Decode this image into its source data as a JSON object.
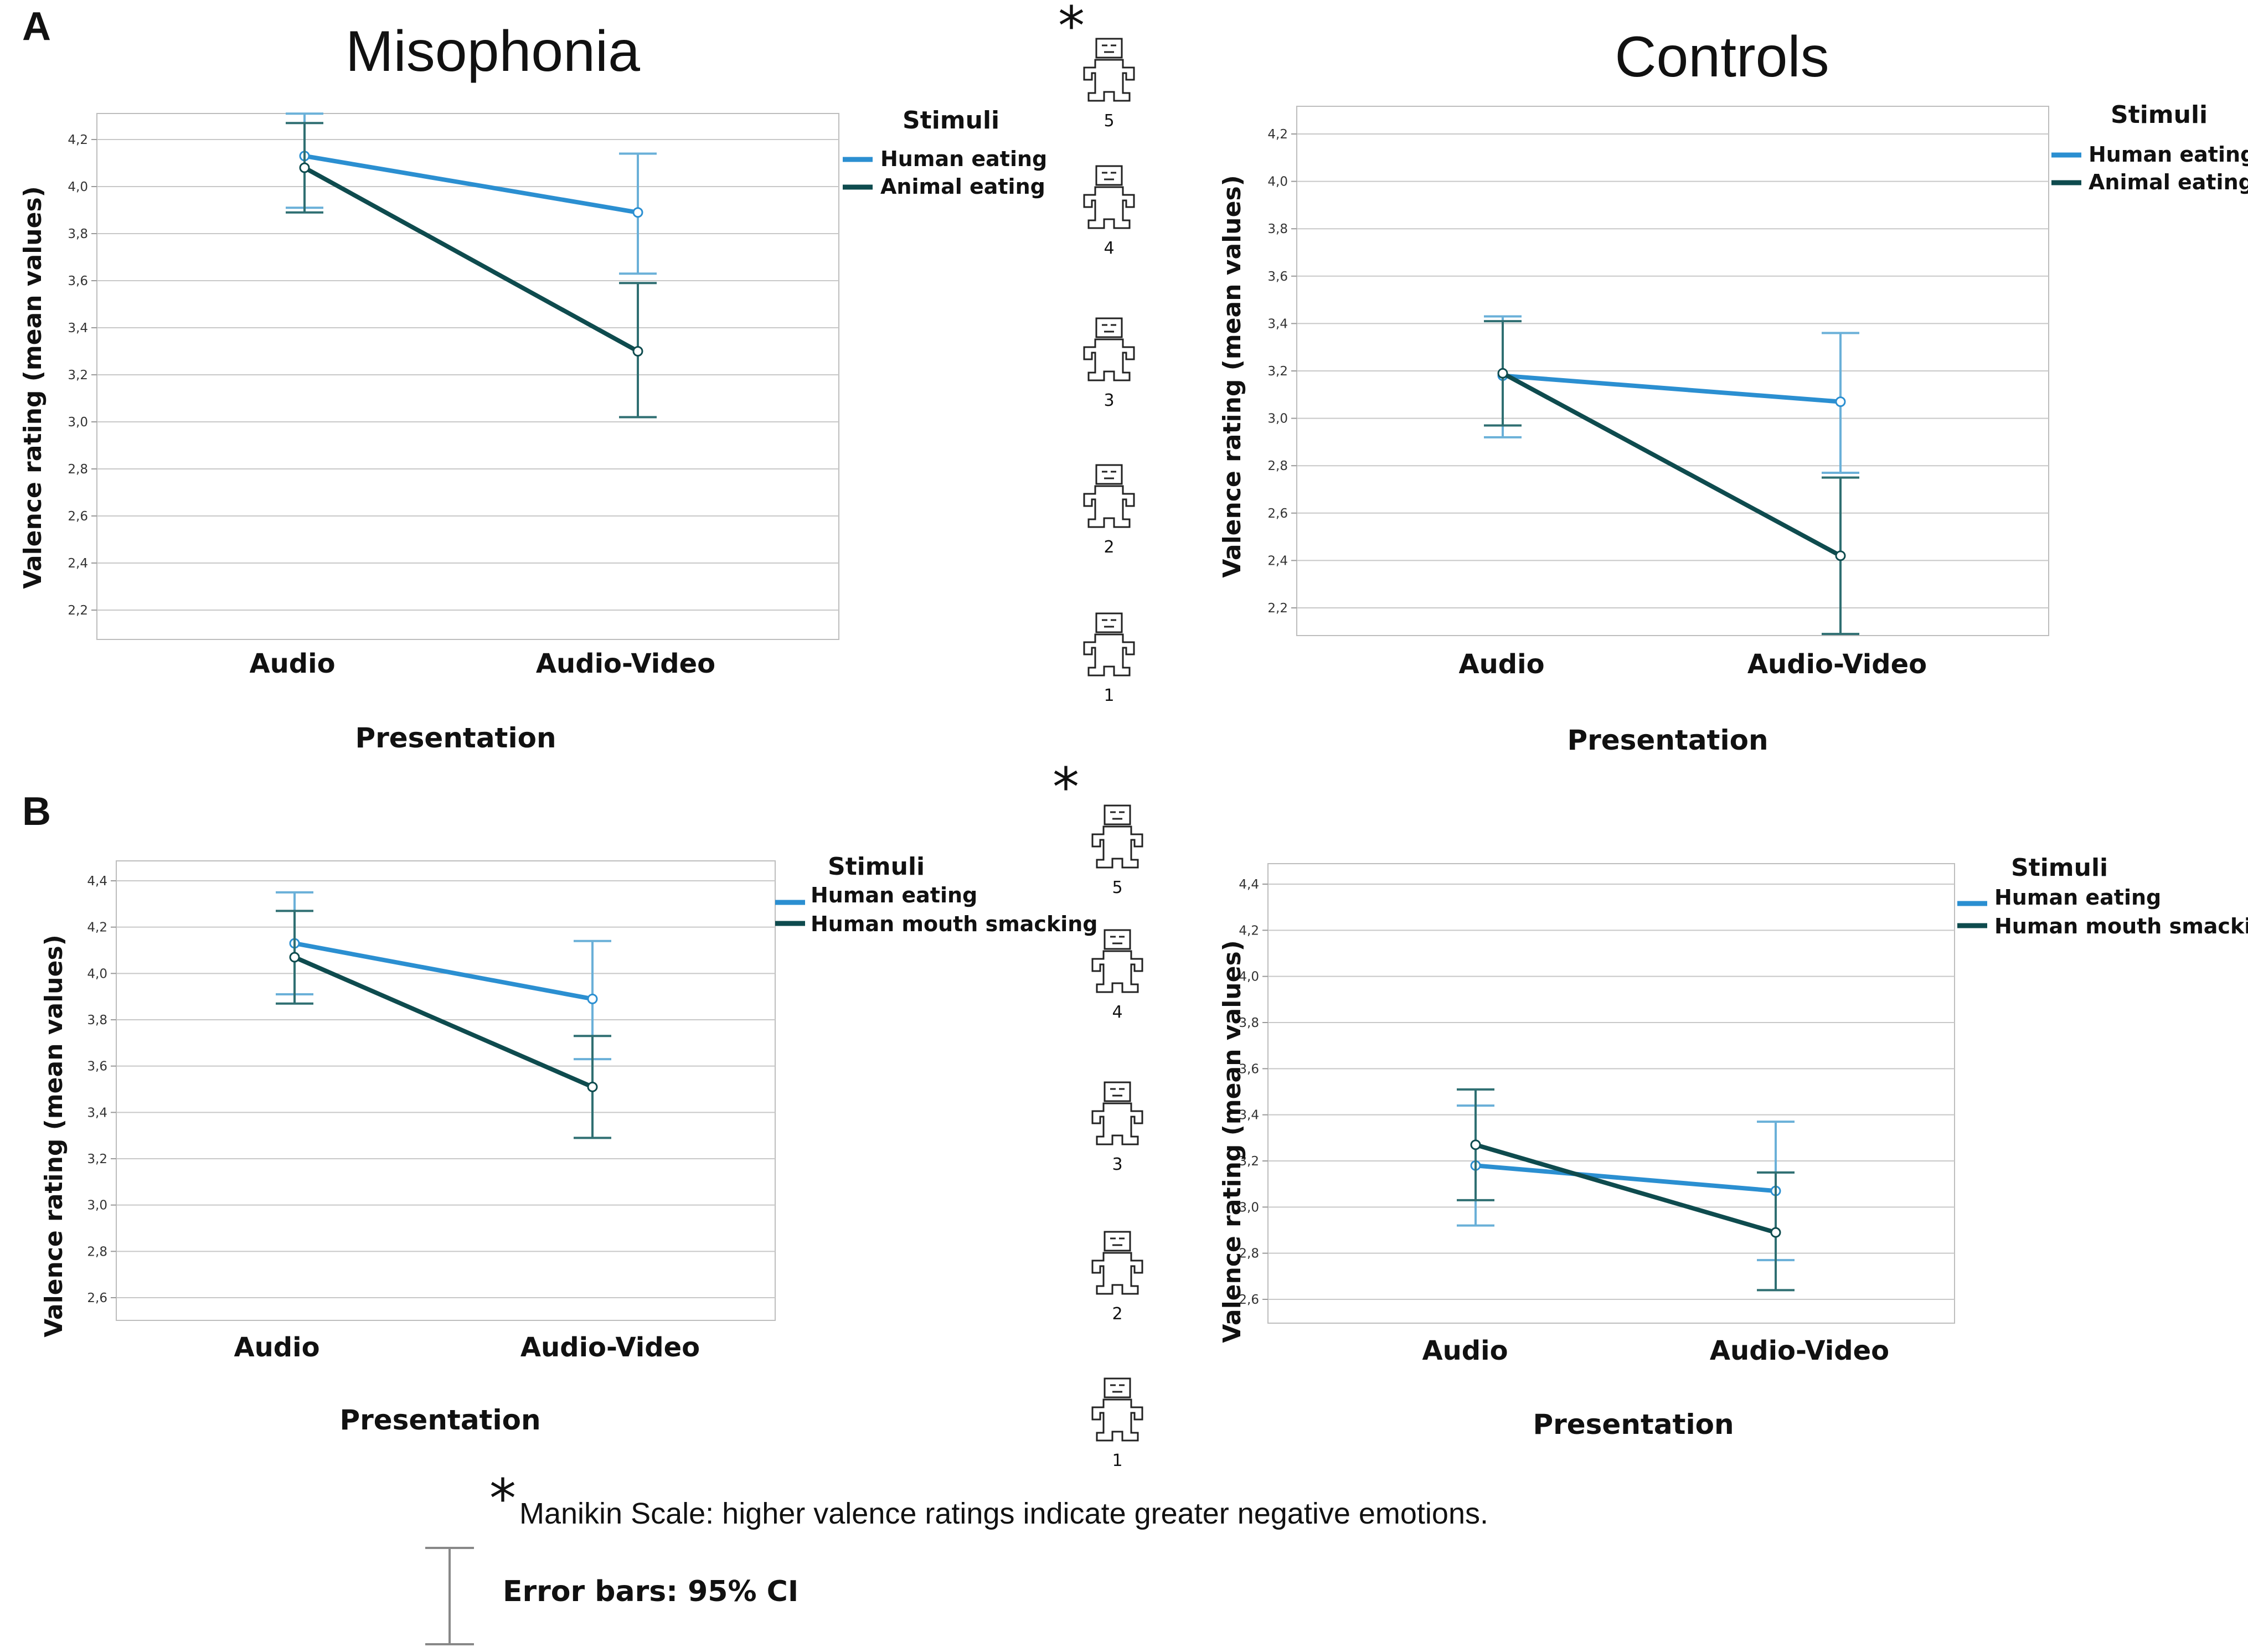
{
  "panel_labels": [
    "A",
    "B"
  ],
  "manikin_footnote": {
    "star": "*",
    "text": "Manikin Scale: higher valence ratings indicate greater negative emotions.",
    "errorbar_text": "Error bars: 95% CI"
  },
  "manikin_scales": [
    {
      "star": "*",
      "levels": [
        "5",
        "4",
        "3",
        "2",
        "1"
      ]
    },
    {
      "star": "*",
      "levels": [
        "5",
        "4",
        "3",
        "2",
        "1"
      ]
    }
  ],
  "colors": {
    "light": "#2b8fd1",
    "dark": "#0e4b4e",
    "light_err": "#6ab0d8",
    "dark_err": "#2f6f72"
  },
  "chart_data": [
    {
      "id": "A-misophonia",
      "type": "line",
      "title": "Misophonia",
      "xlabel": "Presentation",
      "ylabel": "Valence rating (mean values)",
      "categories": [
        "Audio",
        "Audio-Video"
      ],
      "ylim": [
        2.1,
        4.3
      ],
      "yticks": [
        "2,2",
        "2,4",
        "2,6",
        "2,8",
        "3,0",
        "3,2",
        "3,4",
        "3,6",
        "3,8",
        "4,0",
        "4,2"
      ],
      "legend_title": "Stimuli",
      "series": [
        {
          "name": "Human eating",
          "color": "#2b8fd1",
          "values": [
            4.13,
            3.89
          ],
          "ci_low": [
            3.91,
            3.63
          ],
          "ci_high": [
            4.31,
            4.14
          ]
        },
        {
          "name": "Animal eating",
          "color": "#0e4b4e",
          "values": [
            4.08,
            3.3
          ],
          "ci_low": [
            3.89,
            3.02
          ],
          "ci_high": [
            4.27,
            3.59
          ]
        }
      ]
    },
    {
      "id": "A-controls",
      "type": "line",
      "title": "Controls",
      "xlabel": "Presentation",
      "ylabel": "Valence rating (mean values)",
      "categories": [
        "Audio",
        "Audio-Video"
      ],
      "ylim": [
        2.1,
        4.3
      ],
      "yticks": [
        "2,2",
        "2,4",
        "2,6",
        "2,8",
        "3,0",
        "3,2",
        "3,4",
        "3,6",
        "3,8",
        "4,0",
        "4,2"
      ],
      "legend_title": "Stimuli",
      "series": [
        {
          "name": "Human eating",
          "color": "#2b8fd1",
          "values": [
            3.18,
            3.07
          ],
          "ci_low": [
            2.92,
            2.77
          ],
          "ci_high": [
            3.43,
            3.36
          ]
        },
        {
          "name": "Animal eating",
          "color": "#0e4b4e",
          "values": [
            3.19,
            2.42
          ],
          "ci_low": [
            2.97,
            2.09
          ],
          "ci_high": [
            3.41,
            2.75
          ]
        }
      ]
    },
    {
      "id": "B-misophonia",
      "type": "line",
      "title": "",
      "xlabel": "Presentation",
      "ylabel": "Valence rating (mean values)",
      "categories": [
        "Audio",
        "Audio-Video"
      ],
      "ylim": [
        2.5,
        4.5
      ],
      "yticks": [
        "2,6",
        "2,8",
        "3,0",
        "3,2",
        "3,4",
        "3,6",
        "3,8",
        "4,0",
        "4,2",
        "4,4"
      ],
      "legend_title": "Stimuli",
      "series": [
        {
          "name": "Human eating",
          "color": "#2b8fd1",
          "values": [
            4.13,
            3.89
          ],
          "ci_low": [
            3.91,
            3.63
          ],
          "ci_high": [
            4.35,
            4.14
          ]
        },
        {
          "name": "Human mouth smacking",
          "color": "#0e4b4e",
          "values": [
            4.07,
            3.51
          ],
          "ci_low": [
            3.87,
            3.29
          ],
          "ci_high": [
            4.27,
            3.73
          ]
        }
      ]
    },
    {
      "id": "B-controls",
      "type": "line",
      "title": "",
      "xlabel": "Presentation",
      "ylabel": "Valence rating (mean values)",
      "categories": [
        "Audio",
        "Audio-Video"
      ],
      "ylim": [
        2.5,
        4.5
      ],
      "yticks": [
        "2,6",
        "2,8",
        "3,0",
        "3,2",
        "3,4",
        "3,6",
        "3,8",
        "4,0",
        "4,2",
        "4,4"
      ],
      "legend_title": "Stimuli",
      "series": [
        {
          "name": "Human eating",
          "color": "#2b8fd1",
          "values": [
            3.18,
            3.07
          ],
          "ci_low": [
            2.92,
            2.77
          ],
          "ci_high": [
            3.44,
            3.37
          ]
        },
        {
          "name": "Human mouth smacking",
          "color": "#0e4b4e",
          "values": [
            3.27,
            2.89
          ],
          "ci_low": [
            3.03,
            2.64
          ],
          "ci_high": [
            3.51,
            3.15
          ]
        }
      ]
    }
  ]
}
